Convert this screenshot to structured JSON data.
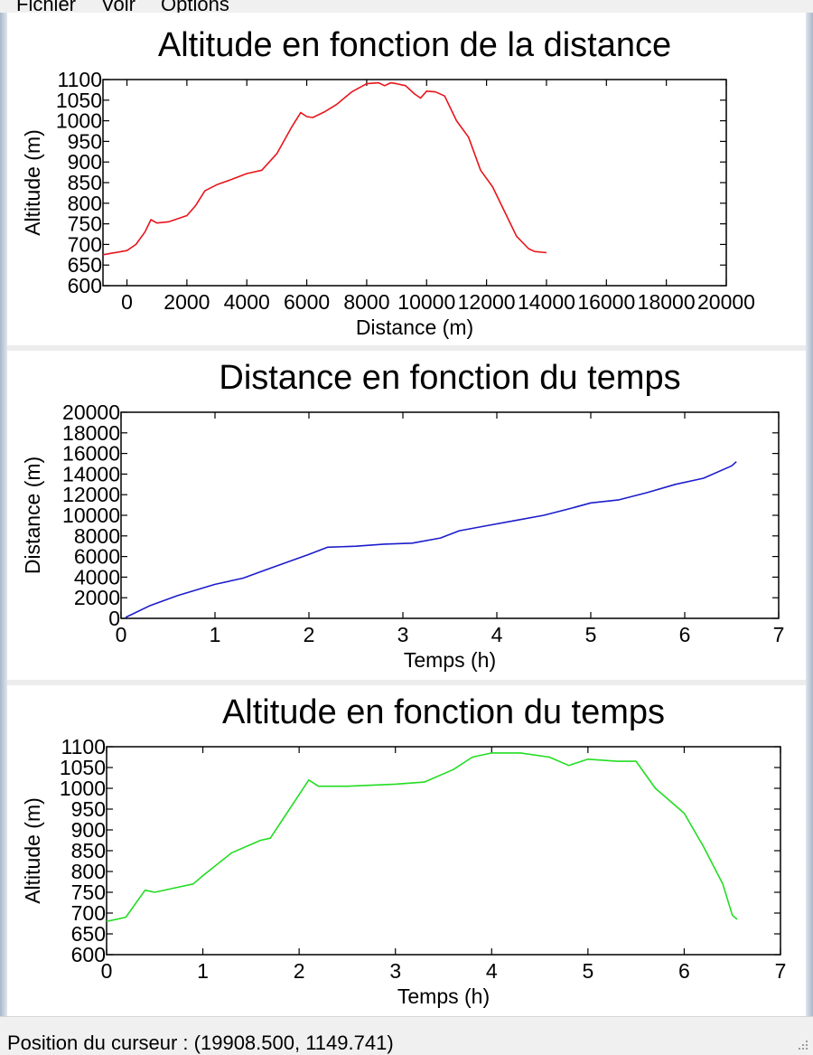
{
  "menu": {
    "items": [
      "Fichier",
      "Voir",
      "Options"
    ]
  },
  "status": {
    "cursor_text": "Position du curseur : (19908.500, 1149.741)"
  },
  "chart_data": [
    {
      "type": "line",
      "title": "Altitude en fonction de la distance",
      "xlabel": "Distance (m)",
      "ylabel": "Altitude (m)",
      "xlim": [
        -800,
        20000
      ],
      "ylim": [
        600,
        1100
      ],
      "xticks": [
        0,
        2000,
        4000,
        6000,
        8000,
        10000,
        12000,
        14000,
        16000,
        18000,
        20000
      ],
      "yticks": [
        600,
        650,
        700,
        750,
        800,
        850,
        900,
        950,
        1000,
        1050,
        1100
      ],
      "grid": false,
      "series": [
        {
          "color": "#e8151b",
          "x": [
            -800,
            0,
            300,
            600,
            800,
            1000,
            1400,
            2000,
            2300,
            2600,
            3000,
            3500,
            4000,
            4500,
            5000,
            5500,
            5800,
            6000,
            6200,
            6600,
            7000,
            7500,
            8000,
            8400,
            8600,
            8800,
            9000,
            9300,
            9600,
            9800,
            10000,
            10300,
            10600,
            11000,
            11400,
            11800,
            12200,
            12600,
            13000,
            13400,
            13600,
            14000
          ],
          "y": [
            675,
            685,
            700,
            730,
            760,
            752,
            755,
            770,
            795,
            830,
            845,
            858,
            872,
            880,
            920,
            985,
            1020,
            1010,
            1008,
            1022,
            1040,
            1070,
            1090,
            1092,
            1085,
            1092,
            1090,
            1085,
            1065,
            1055,
            1072,
            1070,
            1060,
            1000,
            960,
            880,
            840,
            780,
            720,
            690,
            683,
            680
          ]
        }
      ]
    },
    {
      "type": "line",
      "title": "Distance en fonction du temps",
      "xlabel": "Temps (h)",
      "ylabel": "Distance (m)",
      "xlim": [
        0,
        7
      ],
      "ylim": [
        0,
        20000
      ],
      "xticks": [
        0,
        1,
        2,
        3,
        4,
        5,
        6,
        7
      ],
      "yticks": [
        0,
        2000,
        4000,
        6000,
        8000,
        10000,
        12000,
        14000,
        16000,
        18000,
        20000
      ],
      "grid": false,
      "series": [
        {
          "color": "#1c1ccc",
          "x": [
            0.05,
            0.3,
            0.6,
            1.0,
            1.3,
            1.6,
            2.0,
            2.2,
            2.5,
            2.8,
            3.1,
            3.4,
            3.6,
            3.9,
            4.2,
            4.5,
            4.8,
            5.0,
            5.3,
            5.6,
            5.9,
            6.2,
            6.5,
            6.55
          ],
          "y": [
            100,
            1200,
            2200,
            3300,
            3900,
            4900,
            6200,
            6900,
            7000,
            7200,
            7300,
            7800,
            8500,
            9000,
            9500,
            10000,
            10700,
            11200,
            11500,
            12200,
            13000,
            13600,
            14800,
            15200
          ]
        }
      ]
    },
    {
      "type": "line",
      "title": "Altitude en fonction du temps",
      "xlabel": "Temps (h)",
      "ylabel": "Altitude (m)",
      "xlim": [
        0,
        7
      ],
      "ylim": [
        600,
        1100
      ],
      "xticks": [
        0,
        1,
        2,
        3,
        4,
        5,
        6,
        7
      ],
      "yticks": [
        600,
        650,
        700,
        750,
        800,
        850,
        900,
        950,
        1000,
        1050,
        1100
      ],
      "grid": false,
      "series": [
        {
          "color": "#22dd22",
          "x": [
            0.0,
            0.2,
            0.4,
            0.5,
            0.7,
            0.9,
            1.0,
            1.3,
            1.6,
            1.7,
            1.9,
            2.1,
            2.2,
            2.5,
            3.0,
            3.3,
            3.6,
            3.8,
            4.0,
            4.3,
            4.6,
            4.8,
            5.0,
            5.3,
            5.5,
            5.7,
            5.9,
            6.0,
            6.2,
            6.4,
            6.5,
            6.55
          ],
          "y": [
            680,
            690,
            755,
            750,
            760,
            770,
            790,
            845,
            875,
            880,
            950,
            1020,
            1005,
            1005,
            1010,
            1015,
            1045,
            1075,
            1085,
            1085,
            1075,
            1055,
            1070,
            1065,
            1065,
            1000,
            960,
            940,
            860,
            770,
            695,
            685
          ]
        }
      ]
    }
  ]
}
